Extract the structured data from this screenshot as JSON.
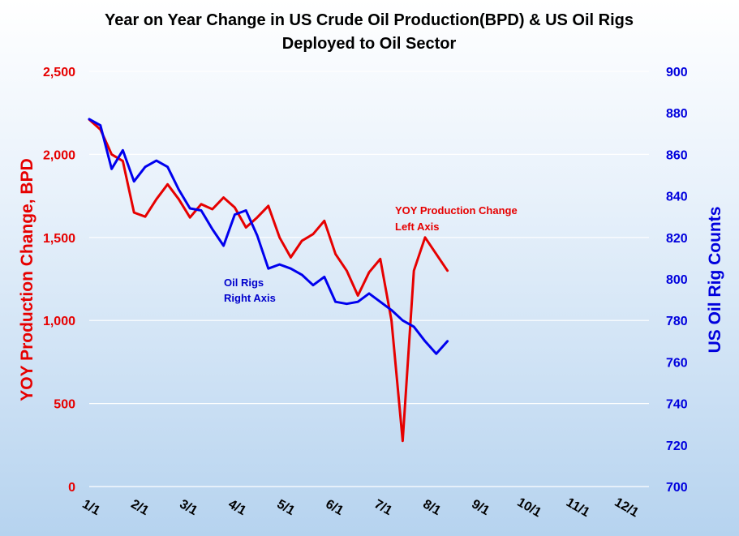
{
  "chart_data": {
    "type": "line",
    "title_lines": [
      "Year on Year Change in US Crude Oil Production(BPD) & US Oil Rigs",
      "Deployed to Oil Sector"
    ],
    "xlabel": "",
    "x_tick_labels": [
      "1/1",
      "2/1",
      "3/1",
      "4/1",
      "5/1",
      "6/1",
      "7/1",
      "8/1",
      "9/1",
      "10/1",
      "11/1",
      "12/1"
    ],
    "x_range_months": [
      1,
      12
    ],
    "y_left": {
      "label": "YOY Production Change, BPD",
      "range": [
        0,
        2500
      ],
      "ticks": [
        0,
        500,
        1000,
        1500,
        2000,
        2500
      ],
      "tick_labels": [
        "0",
        "500",
        "1,000",
        "1,500",
        "2,000",
        "2,500"
      ],
      "color": "#e60000"
    },
    "y_right": {
      "label": "US Oil Rig Counts",
      "range": [
        700,
        900
      ],
      "ticks": [
        700,
        720,
        740,
        760,
        780,
        800,
        820,
        840,
        860,
        880,
        900
      ],
      "tick_labels": [
        "700",
        "720",
        "740",
        "760",
        "780",
        "800",
        "820",
        "840",
        "860",
        "880",
        "900"
      ],
      "color": "#0000dd"
    },
    "grid": true,
    "series": [
      {
        "name": "YOY Production Change",
        "axis": "left",
        "color": "#e60000",
        "x": [
          1.0,
          1.23,
          1.46,
          1.69,
          1.92,
          2.15,
          2.38,
          2.61,
          2.84,
          3.07,
          3.3,
          3.53,
          3.76,
          3.99,
          4.22,
          4.45,
          4.68,
          4.91,
          5.14,
          5.37,
          5.6,
          5.83,
          6.06,
          6.29,
          6.52,
          6.75,
          6.98,
          7.21,
          7.44,
          7.67,
          7.9,
          8.13,
          8.36
        ],
        "values": [
          2210,
          2150,
          2000,
          1960,
          1650,
          1625,
          1730,
          1820,
          1730,
          1620,
          1700,
          1670,
          1740,
          1680,
          1560,
          1620,
          1690,
          1500,
          1380,
          1480,
          1520,
          1600,
          1400,
          1300,
          1150,
          1290,
          1370,
          1000,
          275,
          1300,
          1500,
          1400,
          1300
        ]
      },
      {
        "name": "Oil Rigs",
        "axis": "right",
        "color": "#0000ee",
        "x": [
          1.0,
          1.23,
          1.46,
          1.69,
          1.92,
          2.15,
          2.38,
          2.61,
          2.84,
          3.07,
          3.3,
          3.53,
          3.76,
          3.99,
          4.22,
          4.45,
          4.68,
          4.91,
          5.14,
          5.37,
          5.6,
          5.83,
          6.06,
          6.29,
          6.52,
          6.75,
          6.98,
          7.21,
          7.44,
          7.67,
          7.9,
          8.13,
          8.36
        ],
        "values": [
          877,
          874,
          853,
          862,
          847,
          854,
          857,
          854,
          843,
          834,
          833,
          824,
          816,
          831,
          833,
          821,
          805,
          807,
          805,
          802,
          797,
          801,
          789,
          788,
          789,
          793,
          789,
          785,
          780,
          777,
          770,
          764,
          770
        ]
      }
    ],
    "annotations": [
      {
        "lines": [
          "YOY Production Change",
          "Left Axis"
        ],
        "color": "#e60000",
        "series": "YOY Production Change"
      },
      {
        "lines": [
          "Oil Rigs",
          "Right Axis"
        ],
        "color": "#0000cc",
        "series": "Oil Rigs"
      }
    ]
  }
}
